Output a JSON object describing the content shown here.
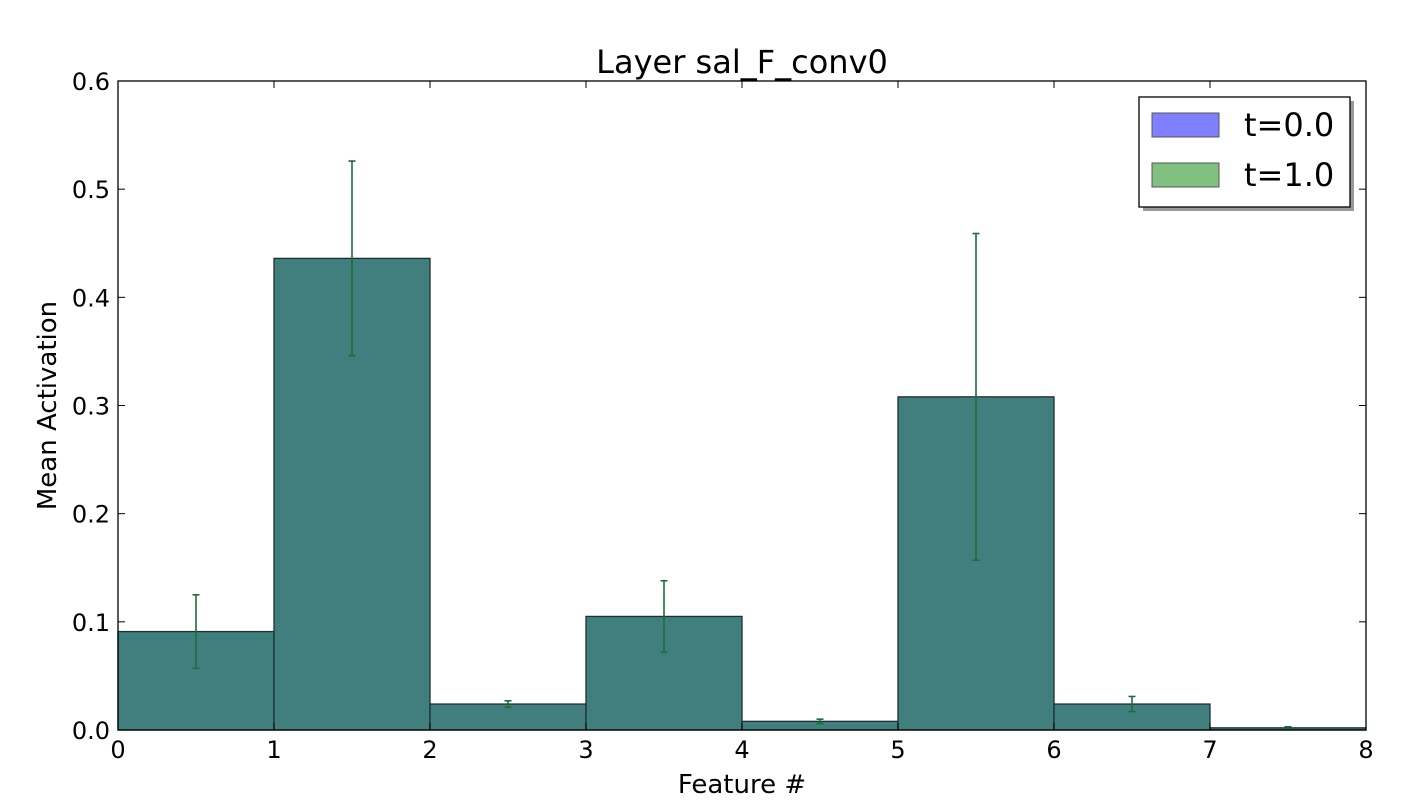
{
  "chart_data": {
    "type": "bar",
    "title": "Layer sal_F_conv0",
    "xlabel": "Feature #",
    "ylabel": "Mean Activation",
    "xlim": [
      0,
      8
    ],
    "ylim": [
      0,
      0.6
    ],
    "xticks": [
      "0",
      "1",
      "2",
      "3",
      "4",
      "5",
      "6",
      "7",
      "8"
    ],
    "yticks": [
      "0.0",
      "0.1",
      "0.2",
      "0.3",
      "0.4",
      "0.5",
      "0.6"
    ],
    "grid": false,
    "legend_position": "top-right",
    "x": [
      0,
      1,
      2,
      3,
      4,
      5,
      6,
      7
    ],
    "bar_width": 1,
    "series": [
      {
        "name": "t=0.0",
        "color": "#8080ff",
        "values": [
          0.091,
          0.436,
          0.024,
          0.105,
          0.008,
          0.308,
          0.024,
          0.002
        ],
        "errors": [
          0.034,
          0.09,
          0.003,
          0.033,
          0.002,
          0.151,
          0.007,
          0.001
        ]
      },
      {
        "name": "t=1.0",
        "color": "#80c080",
        "values": [
          0.091,
          0.436,
          0.024,
          0.105,
          0.008,
          0.308,
          0.024,
          0.002
        ],
        "errors": [
          0.034,
          0.09,
          0.003,
          0.033,
          0.002,
          0.151,
          0.007,
          0.001
        ]
      }
    ],
    "error_color": "#1a6e3a",
    "overlap_color": "#417f7e"
  }
}
